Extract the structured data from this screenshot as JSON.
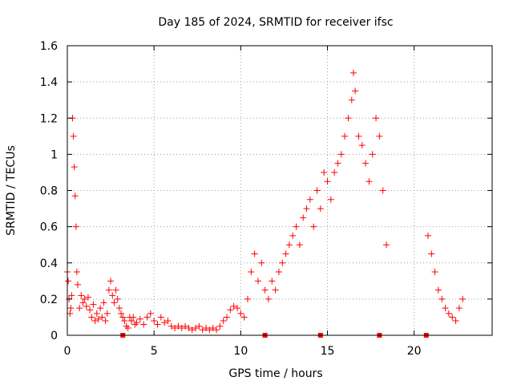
{
  "chart_data": {
    "type": "scatter",
    "title": "Day 185 of 2024, SRMTID for receiver ifsc",
    "xlabel": "GPS time / hours",
    "ylabel": "SRMTID / TECUs",
    "xlim": [
      0,
      24.5
    ],
    "ylim": [
      0,
      1.6
    ],
    "xticks": [
      0,
      5,
      10,
      15,
      20
    ],
    "xtick_labels": [
      "0",
      "5",
      "10",
      "15",
      "20"
    ],
    "yticks": [
      0,
      0.2,
      0.4,
      0.6,
      0.8,
      1.0,
      1.2,
      1.4,
      1.6
    ],
    "ytick_labels": [
      "0",
      "0.2",
      "0.4",
      "0.6",
      "0.8",
      "1",
      "1.2",
      "1.4",
      "1.6"
    ],
    "grid": true,
    "marker": "plus",
    "color": "#ff0000",
    "series": [
      {
        "name": "SRMTID",
        "points": [
          [
            0.0,
            0.35
          ],
          [
            0.05,
            0.3
          ],
          [
            0.1,
            0.2
          ],
          [
            0.15,
            0.12
          ],
          [
            0.2,
            0.15
          ],
          [
            0.25,
            0.22
          ],
          [
            0.3,
            1.2
          ],
          [
            0.35,
            1.1
          ],
          [
            0.4,
            0.93
          ],
          [
            0.45,
            0.77
          ],
          [
            0.5,
            0.6
          ],
          [
            0.55,
            0.35
          ],
          [
            0.6,
            0.28
          ],
          [
            0.7,
            0.15
          ],
          [
            0.8,
            0.22
          ],
          [
            0.9,
            0.18
          ],
          [
            1.0,
            0.2
          ],
          [
            1.1,
            0.16
          ],
          [
            1.2,
            0.21
          ],
          [
            1.3,
            0.14
          ],
          [
            1.4,
            0.1
          ],
          [
            1.5,
            0.17
          ],
          [
            1.6,
            0.08
          ],
          [
            1.7,
            0.12
          ],
          [
            1.8,
            0.09
          ],
          [
            1.9,
            0.15
          ],
          [
            2.0,
            0.1
          ],
          [
            2.1,
            0.18
          ],
          [
            2.2,
            0.08
          ],
          [
            2.3,
            0.12
          ],
          [
            2.4,
            0.25
          ],
          [
            2.5,
            0.3
          ],
          [
            2.6,
            0.22
          ],
          [
            2.7,
            0.18
          ],
          [
            2.8,
            0.25
          ],
          [
            2.9,
            0.2
          ],
          [
            3.0,
            0.15
          ],
          [
            3.1,
            0.12
          ],
          [
            3.2,
            0.1
          ],
          [
            3.3,
            0.08
          ],
          [
            3.4,
            0.05
          ],
          [
            3.5,
            0.04
          ],
          [
            3.6,
            0.1
          ],
          [
            3.7,
            0.08
          ],
          [
            3.8,
            0.1
          ],
          [
            3.9,
            0.06
          ],
          [
            4.0,
            0.07
          ],
          [
            4.2,
            0.09
          ],
          [
            4.4,
            0.06
          ],
          [
            4.6,
            0.1
          ],
          [
            4.8,
            0.12
          ],
          [
            5.0,
            0.08
          ],
          [
            5.2,
            0.06
          ],
          [
            5.4,
            0.1
          ],
          [
            5.6,
            0.07
          ],
          [
            5.8,
            0.08
          ],
          [
            6.0,
            0.05
          ],
          [
            6.2,
            0.04
          ],
          [
            6.4,
            0.05
          ],
          [
            6.6,
            0.04
          ],
          [
            6.8,
            0.05
          ],
          [
            7.0,
            0.04
          ],
          [
            7.2,
            0.03
          ],
          [
            7.4,
            0.04
          ],
          [
            7.6,
            0.05
          ],
          [
            7.8,
            0.03
          ],
          [
            8.0,
            0.04
          ],
          [
            8.2,
            0.03
          ],
          [
            8.4,
            0.04
          ],
          [
            8.6,
            0.03
          ],
          [
            8.8,
            0.05
          ],
          [
            9.0,
            0.08
          ],
          [
            9.2,
            0.1
          ],
          [
            9.4,
            0.14
          ],
          [
            9.6,
            0.16
          ],
          [
            9.8,
            0.15
          ],
          [
            10.0,
            0.12
          ],
          [
            10.2,
            0.1
          ],
          [
            10.4,
            0.2
          ],
          [
            10.6,
            0.35
          ],
          [
            10.8,
            0.45
          ],
          [
            11.0,
            0.3
          ],
          [
            11.2,
            0.4
          ],
          [
            11.4,
            0.25
          ],
          [
            11.6,
            0.2
          ],
          [
            11.8,
            0.3
          ],
          [
            12.0,
            0.25
          ],
          [
            12.2,
            0.35
          ],
          [
            12.4,
            0.4
          ],
          [
            12.6,
            0.45
          ],
          [
            12.8,
            0.5
          ],
          [
            13.0,
            0.55
          ],
          [
            13.2,
            0.6
          ],
          [
            13.4,
            0.5
          ],
          [
            13.6,
            0.65
          ],
          [
            13.8,
            0.7
          ],
          [
            14.0,
            0.75
          ],
          [
            14.2,
            0.6
          ],
          [
            14.4,
            0.8
          ],
          [
            14.6,
            0.7
          ],
          [
            14.8,
            0.9
          ],
          [
            15.0,
            0.85
          ],
          [
            15.2,
            0.75
          ],
          [
            15.4,
            0.9
          ],
          [
            15.6,
            0.95
          ],
          [
            15.8,
            1.0
          ],
          [
            16.0,
            1.1
          ],
          [
            16.2,
            1.2
          ],
          [
            16.4,
            1.3
          ],
          [
            16.5,
            1.45
          ],
          [
            16.6,
            1.35
          ],
          [
            16.8,
            1.1
          ],
          [
            17.0,
            1.05
          ],
          [
            17.2,
            0.95
          ],
          [
            17.4,
            0.85
          ],
          [
            17.6,
            1.0
          ],
          [
            17.8,
            1.2
          ],
          [
            18.0,
            1.1
          ],
          [
            18.2,
            0.8
          ],
          [
            18.4,
            0.5
          ],
          [
            20.8,
            0.55
          ],
          [
            21.0,
            0.45
          ],
          [
            21.2,
            0.35
          ],
          [
            21.4,
            0.25
          ],
          [
            21.6,
            0.2
          ],
          [
            21.8,
            0.15
          ],
          [
            22.0,
            0.12
          ],
          [
            22.2,
            0.1
          ],
          [
            22.4,
            0.08
          ],
          [
            22.6,
            0.15
          ],
          [
            22.8,
            0.2
          ]
        ]
      }
    ],
    "zero_markers_x": [
      3.2,
      11.4,
      14.6,
      18.0,
      20.7
    ]
  }
}
